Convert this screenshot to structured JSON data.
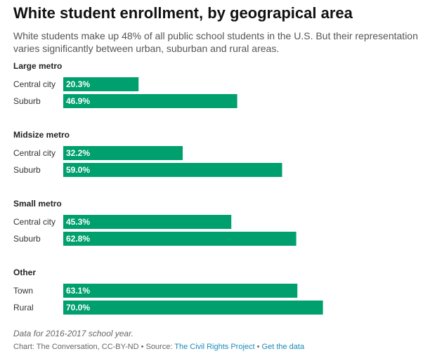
{
  "header": {
    "title": "White student enrollment, by geograpical area",
    "subtitle": "White students make up 48% of all public school students in the U.S. But their representation varies significantly between urban, suburban and rural areas."
  },
  "chart_data": {
    "type": "bar",
    "orientation": "horizontal",
    "value_suffix": "%",
    "xlim": [
      0,
      100
    ],
    "bar_color": "#00a06e",
    "groups": [
      {
        "name": "Large metro",
        "categories": [
          "Central city",
          "Suburb"
        ],
        "values": [
          20.3,
          46.9
        ],
        "labels": [
          "20.3%",
          "46.9%"
        ]
      },
      {
        "name": "Midsize metro",
        "categories": [
          "Central city",
          "Suburb"
        ],
        "values": [
          32.2,
          59.0
        ],
        "labels": [
          "32.2%",
          "59.0%"
        ]
      },
      {
        "name": "Small metro",
        "categories": [
          "Central city",
          "Suburb"
        ],
        "values": [
          45.3,
          62.8
        ],
        "labels": [
          "45.3%",
          "62.8%"
        ]
      },
      {
        "name": "Other",
        "categories": [
          "Town",
          "Rural"
        ],
        "values": [
          63.1,
          70.0
        ],
        "labels": [
          "63.1%",
          "70.0%"
        ]
      }
    ]
  },
  "footer": {
    "note": "Data for 2016-2017 school year.",
    "credit_prefix": "Chart: The Conversation, CC-BY-ND • Source: ",
    "source_link": "The Civil Rights Project",
    "separator": " • ",
    "get_data_link": "Get the data"
  }
}
